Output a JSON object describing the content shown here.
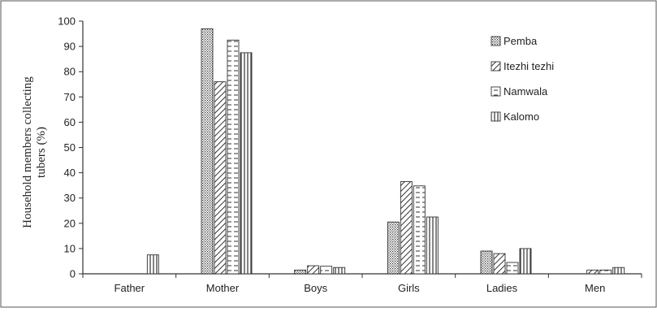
{
  "chart_data": {
    "type": "bar",
    "categories": [
      "Father",
      "Mother",
      "Boys",
      "Girls",
      "Ladies",
      "Men"
    ],
    "series": [
      {
        "name": "Pemba",
        "pattern": "dots",
        "values": [
          0,
          97,
          1.5,
          20.5,
          9,
          0
        ]
      },
      {
        "name": "Itezhi tezhi",
        "pattern": "diagonal",
        "values": [
          0,
          76,
          3.2,
          36.5,
          8,
          1.5
        ]
      },
      {
        "name": "Namwala",
        "pattern": "horizontal-dashed",
        "values": [
          0,
          92.5,
          3,
          34.8,
          4.5,
          1.5
        ]
      },
      {
        "name": "Kalomo",
        "pattern": "vertical",
        "values": [
          7.5,
          87.5,
          2.5,
          22.5,
          10,
          2.5
        ]
      }
    ],
    "ylabel": "Household members collecting tubers (%)",
    "ylabel_lines": [
      "Household members collecting",
      "tubers (%)"
    ],
    "xlabel": "",
    "ylim": [
      0,
      100
    ],
    "yticks": [
      0,
      10,
      20,
      30,
      40,
      50,
      60,
      70,
      80,
      90,
      100
    ],
    "legend_position": "top-right",
    "grid": false,
    "colors": {
      "stroke": "#333333",
      "fill": "#ffffff"
    }
  }
}
